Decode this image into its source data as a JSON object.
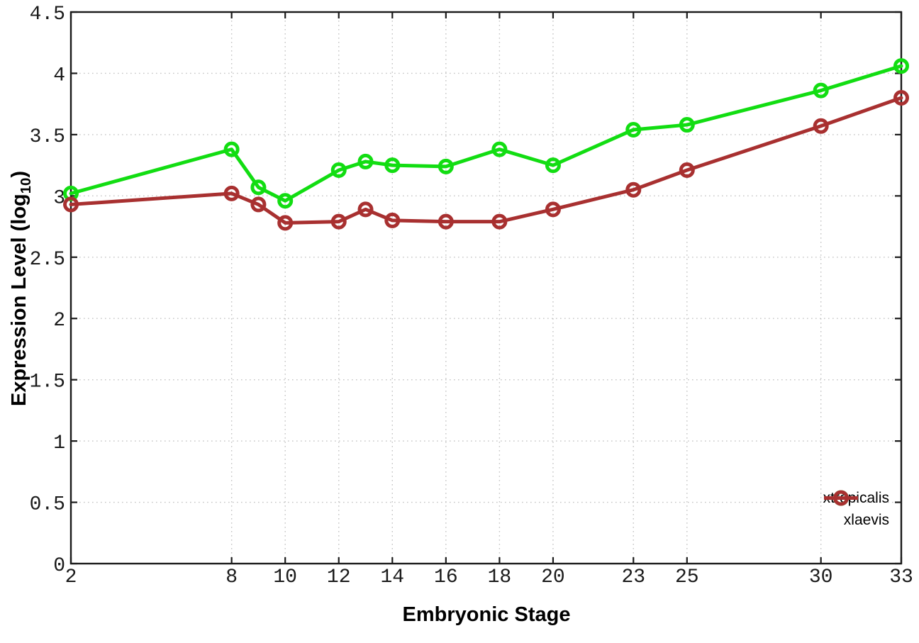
{
  "chart_data": {
    "type": "line",
    "title": "",
    "xlabel": "Embryonic Stage",
    "ylabel_prefix": "Expression Level (log",
    "ylabel_subscript": "10",
    "ylabel_suffix": ")",
    "xlim": [
      2,
      33
    ],
    "ylim": [
      0,
      4.5
    ],
    "grid": true,
    "legend_position": "inside-bottom-right",
    "x_ticks": [
      2,
      8,
      10,
      12,
      14,
      16,
      18,
      20,
      23,
      25,
      30,
      33
    ],
    "x_tick_labels": [
      "2",
      "8",
      "10",
      "12",
      "14",
      "16",
      "18",
      "20",
      "23",
      "25",
      "30",
      "33"
    ],
    "y_ticks": [
      0,
      0.5,
      1,
      1.5,
      2,
      2.5,
      3,
      3.5,
      4,
      4.5
    ],
    "y_tick_labels": [
      "0",
      "0.5",
      "1",
      "1.5",
      "2",
      "2.5",
      "3",
      "3.5",
      "4",
      "4.5"
    ],
    "x": [
      2,
      8,
      9,
      10,
      12,
      13,
      14,
      16,
      18,
      20,
      23,
      25,
      30,
      33
    ],
    "series": [
      {
        "name": "xtropicalis",
        "color": "#12dd12",
        "values": [
          3.02,
          3.38,
          3.07,
          2.96,
          3.21,
          3.28,
          3.25,
          3.24,
          3.38,
          3.25,
          3.54,
          3.58,
          3.86,
          4.06
        ]
      },
      {
        "name": "xlaevis",
        "color": "#a83030",
        "values": [
          2.93,
          3.02,
          2.93,
          2.78,
          2.79,
          2.89,
          2.8,
          2.79,
          2.79,
          2.89,
          3.05,
          3.21,
          3.57,
          3.8
        ]
      }
    ],
    "grid_color": "#c4c4c4",
    "axis_color": "#1a1a1a"
  }
}
